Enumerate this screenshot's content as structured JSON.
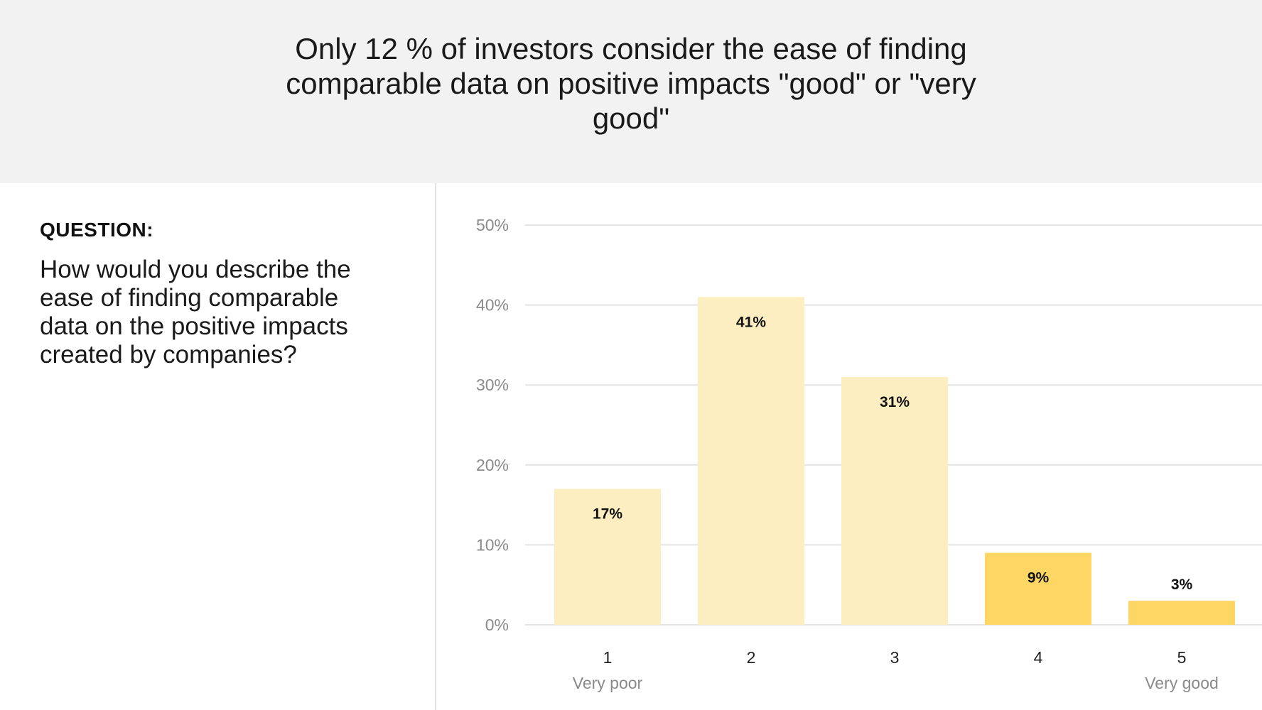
{
  "header": {
    "title": "Only 12 % of investors consider the ease of finding comparable data on positive impacts \"good\" or \"very good\""
  },
  "question": {
    "label": "QUESTION:",
    "text": "How would you describe the ease of finding comparable data on the positive impacts created by companies?"
  },
  "chart_data": {
    "type": "bar",
    "categories": [
      "1",
      "2",
      "3",
      "4",
      "5"
    ],
    "category_sublabels": [
      "Very poor",
      "",
      "",
      "",
      "Very good"
    ],
    "values": [
      17,
      41,
      31,
      9,
      3
    ],
    "data_labels": [
      "17%",
      "41%",
      "31%",
      "9%",
      "3%"
    ],
    "bar_colors": [
      "#fdeec2",
      "#fdeec2",
      "#fdeec2",
      "#fdd663",
      "#fdd663"
    ],
    "ylim": [
      0,
      50
    ],
    "yticks": [
      0,
      10,
      20,
      30,
      40,
      50
    ],
    "ytick_labels": [
      "0%",
      "10%",
      "20%",
      "30%",
      "40%",
      "50%"
    ],
    "grid": true,
    "grid_color": "#e3e3e3",
    "title": "",
    "xlabel": "",
    "ylabel": ""
  }
}
